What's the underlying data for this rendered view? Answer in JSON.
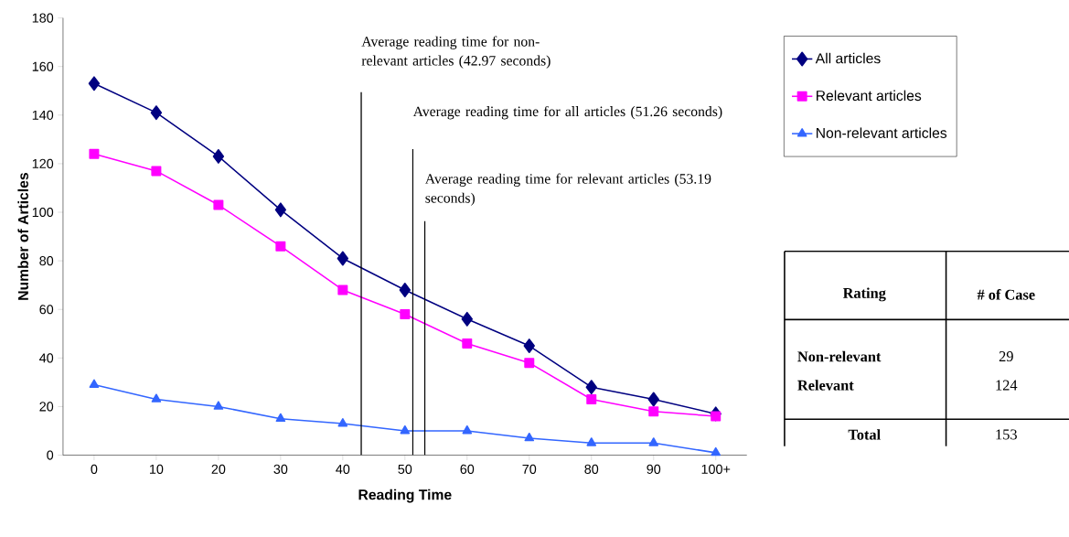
{
  "chart_data": {
    "type": "line",
    "xlabel": "Reading Time",
    "ylabel": "Number of Articles",
    "x": [
      0,
      10,
      20,
      30,
      40,
      50,
      60,
      70,
      80,
      90,
      100
    ],
    "xlim": [
      -5,
      105
    ],
    "xticks": [
      0,
      10,
      20,
      30,
      40,
      50,
      60,
      70,
      80,
      90,
      {
        "value": 100,
        "label": "100+"
      }
    ],
    "ylim": [
      0,
      180
    ],
    "yticks": [
      0,
      20,
      40,
      60,
      80,
      100,
      120,
      140,
      160,
      180
    ],
    "series": [
      {
        "name": "All articles",
        "color": "#000080",
        "marker": "diamond",
        "values": [
          153,
          141,
          123,
          101,
          81,
          68,
          56,
          45,
          28,
          23,
          17
        ]
      },
      {
        "name": "Relevant articles",
        "color": "#ff00ff",
        "marker": "square",
        "values": [
          124,
          117,
          103,
          86,
          68,
          58,
          46,
          38,
          23,
          18,
          16
        ]
      },
      {
        "name": "Non-relevant articles",
        "color": "#3366ff",
        "marker": "triangle",
        "values": [
          29,
          23,
          20,
          15,
          13,
          10,
          10,
          7,
          5,
          5,
          1
        ]
      }
    ],
    "ref_lines": [
      {
        "axis": "x",
        "value": 42.97,
        "label": "Average reading time for non-relevant articles (42.97 seconds)",
        "color": "#000000"
      },
      {
        "axis": "x",
        "value": 51.26,
        "label": "Average reading time for all articles (51.26 seconds)",
        "color": "#000000"
      },
      {
        "axis": "x",
        "value": 53.19,
        "label": "Average reading time for relevant articles (53.19 seconds)",
        "color": "#000000"
      }
    ],
    "annotations": [
      "Rating",
      "# of Case",
      "Non-relevant",
      "Relevant",
      "29",
      "124",
      "Total",
      "153"
    ],
    "legend": "right",
    "grid": false,
    "line_style": "solid"
  }
}
